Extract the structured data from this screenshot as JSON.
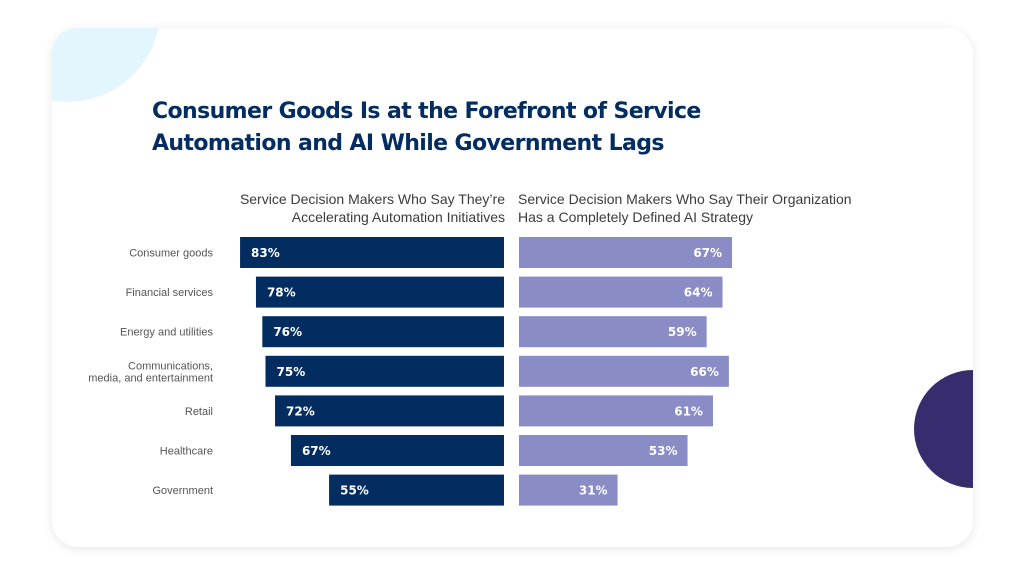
{
  "colors": {
    "left_bar": "#032d60",
    "right_bar": "#8a8cc6",
    "title": "#032d60",
    "accent_circle": "#372c6e",
    "light_circle": "#e3f6fd"
  },
  "chart_data": {
    "type": "bar",
    "orientation": "horizontal",
    "title": "Consumer Goods Is at the Forefront of Service Automation and AI While Government Lags",
    "title_lines": [
      "Consumer Goods Is at the Forefront of Service",
      "Automation and AI While Government Lags"
    ],
    "categories": [
      "Consumer goods",
      "Financial services",
      "Energy and utilities",
      "Communications, media, and entertainment",
      "Retail",
      "Healthcare",
      "Government"
    ],
    "category_lines": [
      [
        "Consumer goods"
      ],
      [
        "Financial services"
      ],
      [
        "Energy and utilities"
      ],
      [
        "Communications,",
        "media, and entertainment"
      ],
      [
        "Retail"
      ],
      [
        "Healthcare"
      ],
      [
        "Government"
      ]
    ],
    "series": [
      {
        "name": "Service Decision Makers Who Say They're Accelerating Automation Initiatives",
        "header_lines": [
          "Service Decision Makers Who Say They’re",
          "Accelerating Automation Initiatives"
        ],
        "values": [
          83,
          78,
          76,
          75,
          72,
          67,
          55
        ],
        "labels": [
          "83%",
          "78%",
          "76%",
          "75%",
          "72%",
          "67%",
          "55%"
        ],
        "direction": "leftward"
      },
      {
        "name": "Service Decision Makers Who Say Their Organization Has a Completely Defined AI Strategy",
        "header_lines": [
          "Service Decision Makers Who Say Their Organization",
          "Has a Completely Defined AI Strategy"
        ],
        "values": [
          67,
          64,
          59,
          66,
          61,
          53,
          31
        ],
        "labels": [
          "67%",
          "64%",
          "59%",
          "66%",
          "61%",
          "53%",
          "31%"
        ],
        "direction": "rightward"
      }
    ],
    "unit": "%",
    "xlim": [
      0,
      100
    ],
    "grid": false,
    "legend": "column headers above bars"
  }
}
